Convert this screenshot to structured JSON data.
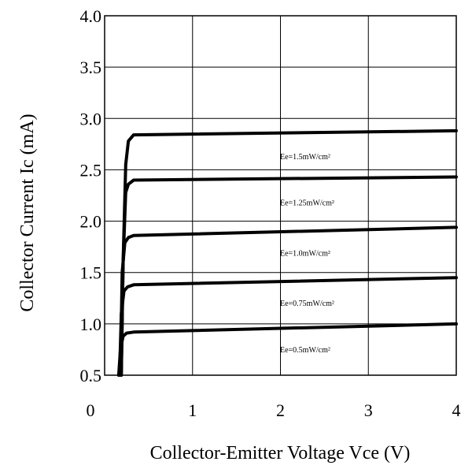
{
  "chart_data": {
    "type": "line",
    "title": "",
    "xlabel": "Collector-Emitter Voltage Vce (V)",
    "ylabel": "Collector Current Ic (mA)",
    "xlim": [
      0,
      4
    ],
    "ylim": [
      0.5,
      4.0
    ],
    "x_ticks": [
      "0",
      "1",
      "2",
      "3",
      "4"
    ],
    "y_ticks": [
      "0.5",
      "1.0",
      "1.5",
      "2.0",
      "2.5",
      "3.0",
      "3.5",
      "4.0"
    ],
    "grid": true,
    "series": [
      {
        "name": "Ee=1.5mW/cm²",
        "x": [
          0.19,
          0.21,
          0.24,
          0.27,
          0.33,
          4.0
        ],
        "y": [
          0.5,
          1.6,
          2.55,
          2.78,
          2.84,
          2.88
        ]
      },
      {
        "name": "Ee=1.25mW/cm²",
        "x": [
          0.19,
          0.21,
          0.24,
          0.27,
          0.33,
          4.0
        ],
        "y": [
          0.5,
          1.6,
          2.28,
          2.36,
          2.4,
          2.43
        ]
      },
      {
        "name": "Ee=1.0mW/cm²",
        "x": [
          0.18,
          0.2,
          0.23,
          0.27,
          0.33,
          4.0
        ],
        "y": [
          0.5,
          1.5,
          1.79,
          1.84,
          1.86,
          1.94
        ]
      },
      {
        "name": "Ee=0.75mW/cm²",
        "x": [
          0.17,
          0.19,
          0.22,
          0.26,
          0.33,
          4.0
        ],
        "y": [
          0.5,
          1.1,
          1.32,
          1.36,
          1.38,
          1.45
        ]
      },
      {
        "name": "Ee=0.5mW/cm²",
        "x": [
          0.16,
          0.18,
          0.21,
          0.25,
          0.33,
          4.0
        ],
        "y": [
          0.5,
          0.75,
          0.88,
          0.91,
          0.92,
          1.0
        ]
      }
    ]
  }
}
